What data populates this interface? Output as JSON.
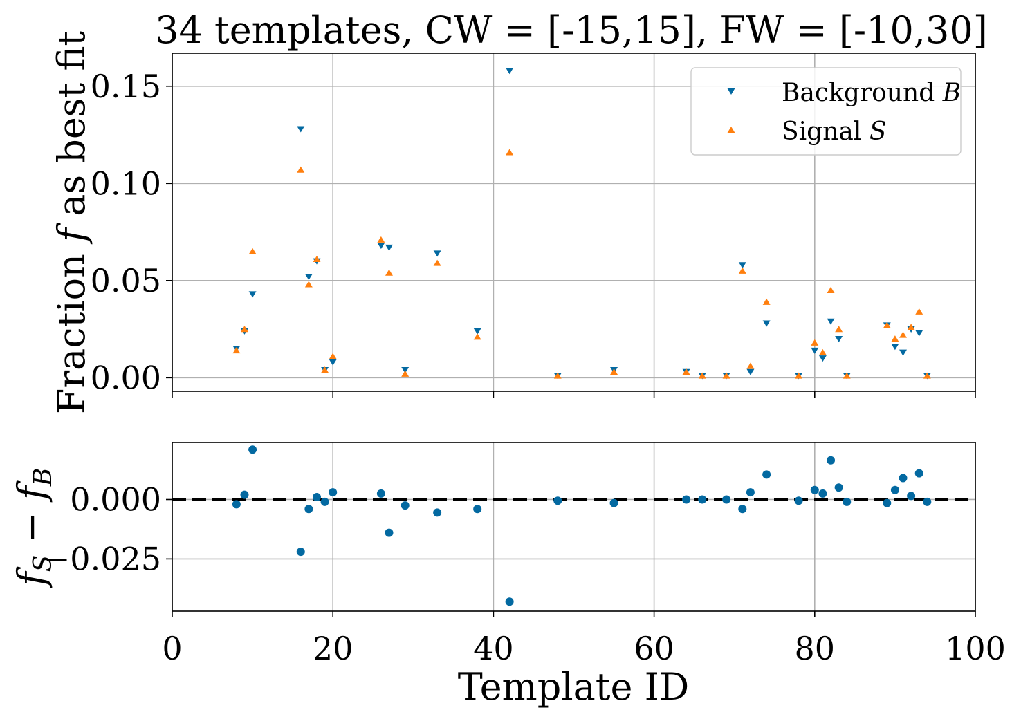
{
  "colors": {
    "background_series": "#0369a1",
    "signal_series": "#ff7f0e",
    "difference_points": "#0369a1",
    "zero_line": "#000000",
    "grid": "#b0b0b0"
  },
  "chart_data": [
    {
      "type": "scatter",
      "title": "34 templates, CW = [-15,15], FW = [-10,30]",
      "ylabel": "Fraction f as best fit",
      "ylabel_parts": {
        "before": "Fraction ",
        "math": "f",
        "after": " as best fit"
      },
      "xlim": [
        0,
        100
      ],
      "ylim": [
        -0.007,
        0.167
      ],
      "yticks": [
        0.0,
        0.05,
        0.1,
        0.15
      ],
      "ytick_labels": [
        "0.00",
        "0.05",
        "0.10",
        "0.15"
      ],
      "grid": true,
      "legend": {
        "placement": "upper right",
        "entries": [
          {
            "label_text": "Background ",
            "label_math": "B",
            "marker": "triangle-down",
            "series": 0
          },
          {
            "label_text": "Signal ",
            "label_math": "S",
            "marker": "triangle-up",
            "series": 1
          }
        ]
      },
      "series": [
        {
          "name": "Background B",
          "marker": "triangle-down",
          "points": [
            [
              8,
              0.015
            ],
            [
              9,
              0.024
            ],
            [
              10,
              0.043
            ],
            [
              16,
              0.128
            ],
            [
              17,
              0.052
            ],
            [
              18,
              0.06
            ],
            [
              19,
              0.004
            ],
            [
              20,
              0.008
            ],
            [
              26,
              0.068
            ],
            [
              27,
              0.067
            ],
            [
              29,
              0.004
            ],
            [
              33,
              0.064
            ],
            [
              38,
              0.024
            ],
            [
              42,
              0.158
            ],
            [
              48,
              0.001
            ],
            [
              55,
              0.004
            ],
            [
              64,
              0.003
            ],
            [
              66,
              0.001
            ],
            [
              69,
              0.001
            ],
            [
              71,
              0.058
            ],
            [
              72,
              0.003
            ],
            [
              74,
              0.028
            ],
            [
              78,
              0.001
            ],
            [
              80,
              0.014
            ],
            [
              81,
              0.01
            ],
            [
              82,
              0.029
            ],
            [
              83,
              0.02
            ],
            [
              84,
              0.001
            ],
            [
              89,
              0.027
            ],
            [
              90,
              0.016
            ],
            [
              91,
              0.013
            ],
            [
              92,
              0.025
            ],
            [
              93,
              0.023
            ],
            [
              94,
              0.001
            ]
          ]
        },
        {
          "name": "Signal S",
          "marker": "triangle-up",
          "points": [
            [
              8,
              0.014
            ],
            [
              9,
              0.025
            ],
            [
              10,
              0.065
            ],
            [
              16,
              0.107
            ],
            [
              17,
              0.048
            ],
            [
              18,
              0.061
            ],
            [
              19,
              0.004
            ],
            [
              20,
              0.011
            ],
            [
              26,
              0.071
            ],
            [
              27,
              0.054
            ],
            [
              29,
              0.002
            ],
            [
              33,
              0.059
            ],
            [
              38,
              0.021
            ],
            [
              42,
              0.116
            ],
            [
              48,
              0.001
            ],
            [
              55,
              0.003
            ],
            [
              64,
              0.003
            ],
            [
              66,
              0.001
            ],
            [
              69,
              0.001
            ],
            [
              71,
              0.055
            ],
            [
              72,
              0.006
            ],
            [
              74,
              0.039
            ],
            [
              78,
              0.001
            ],
            [
              80,
              0.018
            ],
            [
              81,
              0.013
            ],
            [
              82,
              0.045
            ],
            [
              83,
              0.025
            ],
            [
              84,
              0.001
            ],
            [
              89,
              0.027
            ],
            [
              90,
              0.02
            ],
            [
              91,
              0.022
            ],
            [
              92,
              0.026
            ],
            [
              93,
              0.034
            ],
            [
              94,
              0.001
            ]
          ]
        }
      ]
    },
    {
      "type": "scatter",
      "xlabel": "Template ID",
      "ylabel": "fS − fB",
      "ylabel_parts": {
        "f1": "f",
        "s1": "S",
        "op": " − ",
        "f2": "f",
        "s2": "B"
      },
      "xlim": [
        0,
        100
      ],
      "ylim": [
        -0.047,
        0.024
      ],
      "xticks": [
        0,
        20,
        40,
        60,
        80,
        100
      ],
      "xtick_labels": [
        "0",
        "20",
        "40",
        "60",
        "80",
        "100"
      ],
      "yticks": [
        0.0,
        -0.025
      ],
      "ytick_labels": [
        "0.000",
        "−0.025"
      ],
      "grid": true,
      "reference_line": {
        "y": 0,
        "style": "dashed"
      },
      "series": [
        {
          "marker": "circle",
          "points": [
            [
              8,
              -0.002
            ],
            [
              9,
              0.002
            ],
            [
              10,
              0.021
            ],
            [
              16,
              -0.022
            ],
            [
              17,
              -0.004
            ],
            [
              18,
              0.001
            ],
            [
              19,
              -0.001
            ],
            [
              20,
              0.003
            ],
            [
              26,
              0.0025
            ],
            [
              27,
              -0.014
            ],
            [
              29,
              -0.0025
            ],
            [
              33,
              -0.0055
            ],
            [
              38,
              -0.004
            ],
            [
              42,
              -0.043
            ],
            [
              48,
              -0.0005
            ],
            [
              55,
              -0.0015
            ],
            [
              64,
              0.0
            ],
            [
              66,
              0.0
            ],
            [
              69,
              0.0
            ],
            [
              71,
              -0.004
            ],
            [
              72,
              0.003
            ],
            [
              74,
              0.0105
            ],
            [
              78,
              -0.0005
            ],
            [
              80,
              0.004
            ],
            [
              81,
              0.0025
            ],
            [
              82,
              0.0165
            ],
            [
              83,
              0.005
            ],
            [
              84,
              -0.001
            ],
            [
              89,
              -0.0015
            ],
            [
              90,
              0.004
            ],
            [
              91,
              0.009
            ],
            [
              92,
              0.0015
            ],
            [
              93,
              0.011
            ],
            [
              94,
              -0.001
            ]
          ]
        }
      ]
    }
  ]
}
